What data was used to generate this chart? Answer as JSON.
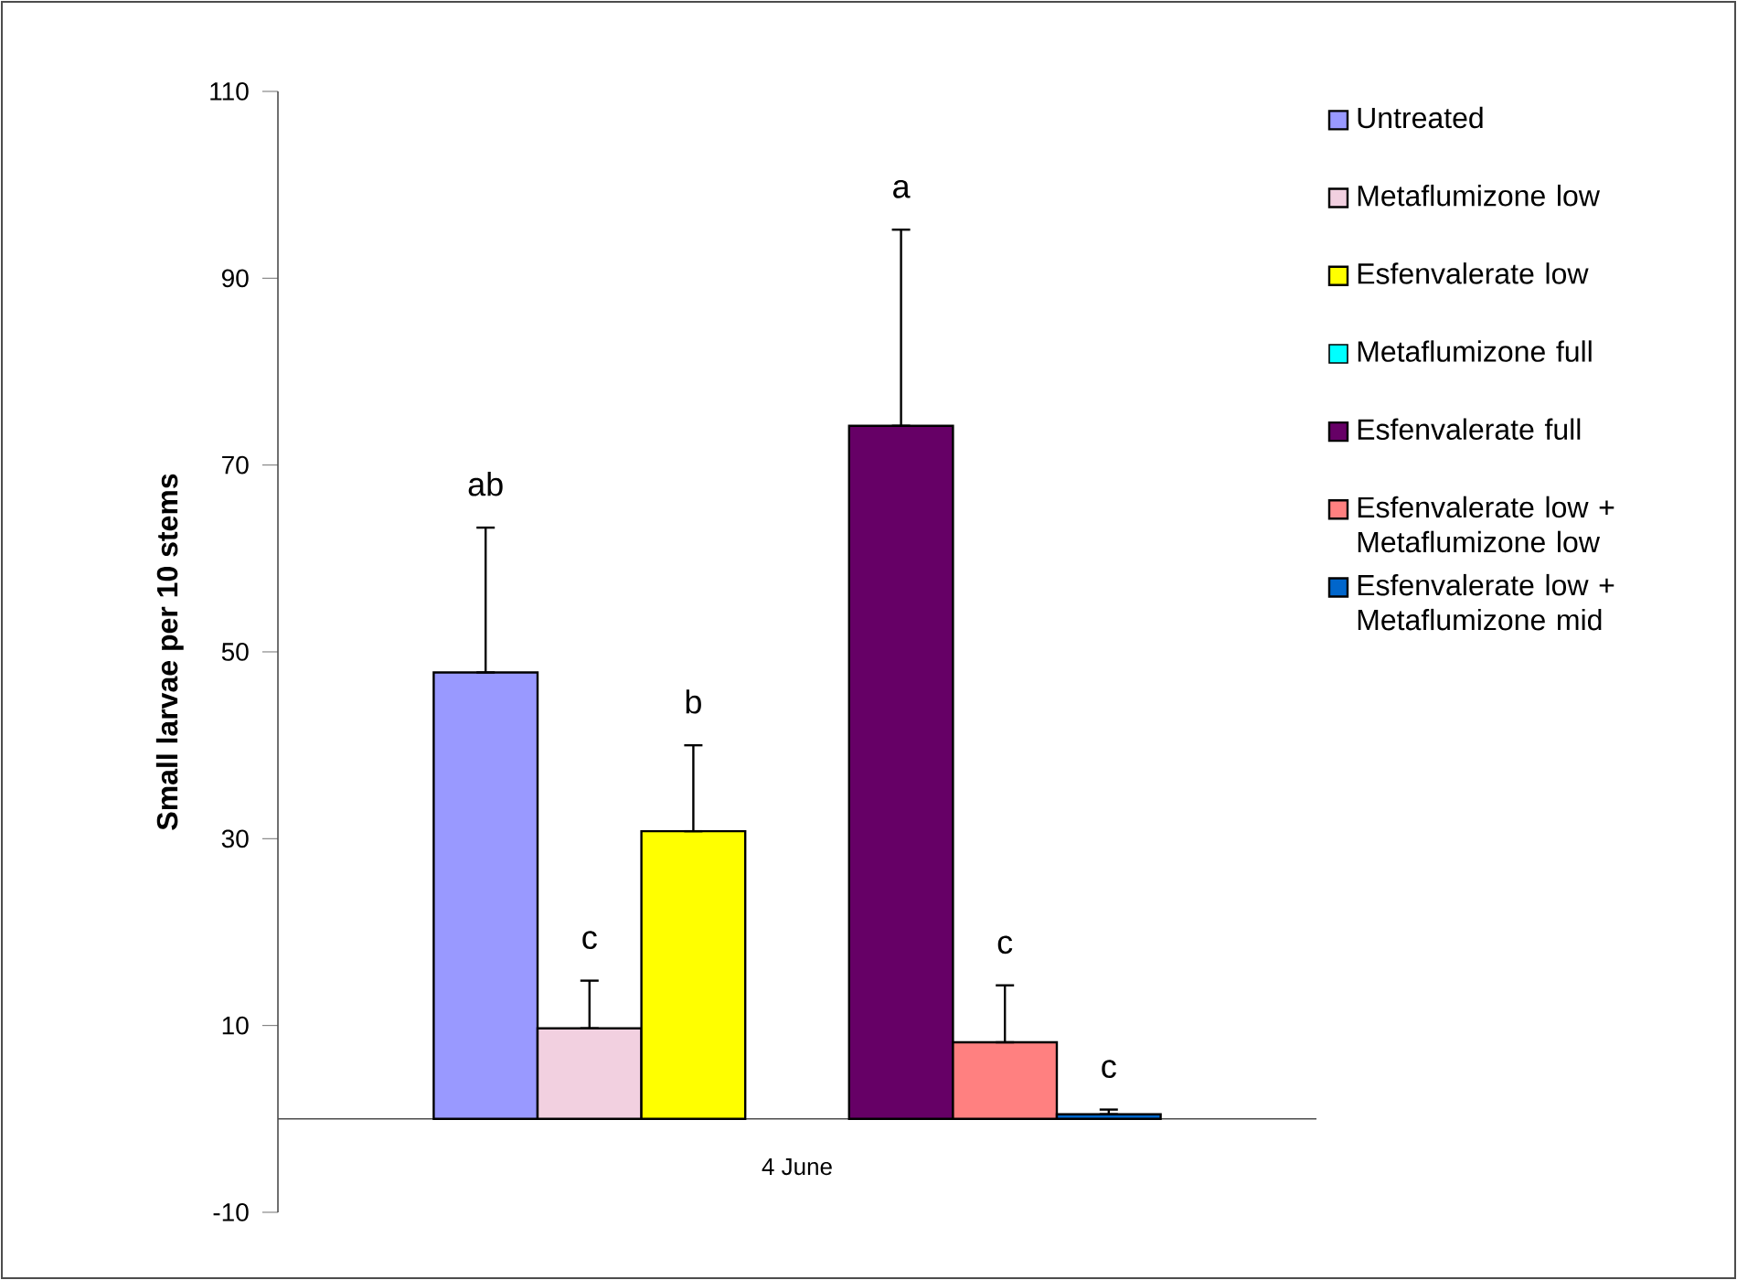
{
  "chart_data": {
    "type": "bar",
    "ylabel": "Small larvae per 10 stems",
    "categories": [
      "4 June"
    ],
    "series": [
      {
        "name": "Untreated",
        "color": "#9999ff",
        "values": [
          47.8
        ],
        "errors": [
          [
            47.8,
            63.3
          ]
        ]
      },
      {
        "name": "Metaflumizone low",
        "color": "#f2d0e0",
        "values": [
          9.7
        ],
        "errors": [
          [
            9.7,
            14.8
          ]
        ]
      },
      {
        "name": "Esfenvalerate low",
        "color": "#ffff00",
        "values": [
          30.8
        ],
        "errors": [
          [
            30.8,
            40
          ]
        ]
      },
      {
        "name": "Metaflumizone full",
        "color": "#00ffff",
        "values": [
          null
        ],
        "errors": [
          null
        ]
      },
      {
        "name": "Esfenvalerate full",
        "color": "#660066",
        "values": [
          74.2
        ],
        "errors": [
          [
            74.2,
            95.2
          ]
        ]
      },
      {
        "name": "Esfenvalerate low + Metaflumizone low",
        "color": "#ff8080",
        "values": [
          8.2
        ],
        "errors": [
          [
            8.2,
            14.3
          ]
        ]
      },
      {
        "name": "Esfenvalerate low + Metaflumizone mid",
        "color": "#0066cc",
        "values": [
          0.5
        ],
        "errors": [
          [
            0.5,
            1
          ]
        ]
      }
    ],
    "annotations": [
      "ab",
      "c",
      "b",
      "a",
      "c",
      "c"
    ],
    "ylim": [
      -10,
      110
    ],
    "yticks": [
      -10,
      10,
      30,
      50,
      70,
      90,
      110
    ],
    "grid": false,
    "legend": "right"
  }
}
